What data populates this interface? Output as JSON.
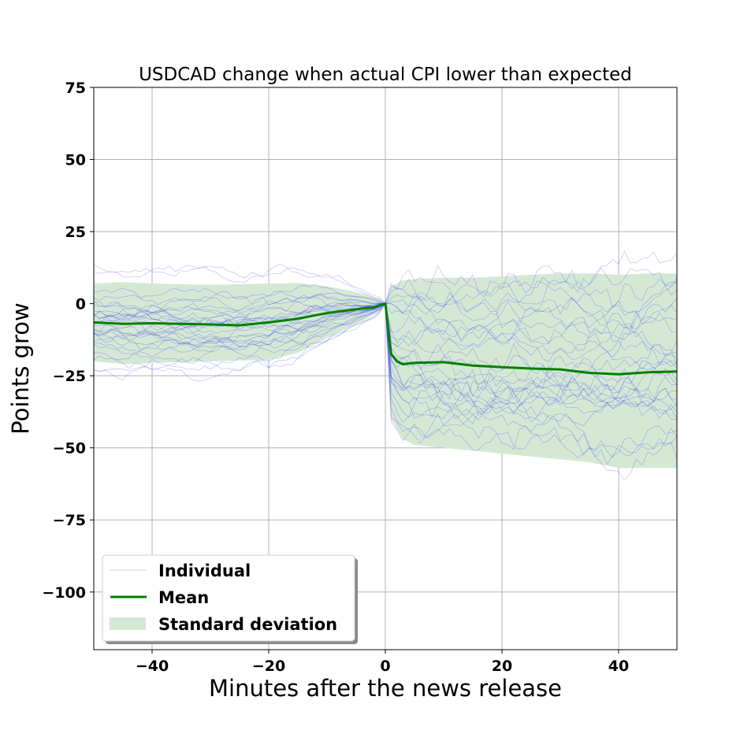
{
  "chart_data": {
    "type": "line",
    "title": "USDCAD change when actual CPI lower than expected",
    "xlabel": "Minutes after the news release",
    "ylabel": "Points grow",
    "xlim": [
      -50,
      50
    ],
    "ylim": [
      -120,
      75
    ],
    "xticks": [
      -40,
      -20,
      0,
      20,
      40
    ],
    "xtick_labels": [
      "−40",
      "−20",
      "0",
      "20",
      "40"
    ],
    "yticks": [
      75,
      50,
      25,
      0,
      -25,
      -50,
      -75,
      -100
    ],
    "ytick_labels": [
      "75",
      "50",
      "25",
      "0",
      "−25",
      "−50",
      "−75",
      "−100"
    ],
    "grid": true,
    "legend": {
      "placement": "lower-left",
      "entries": [
        "Individual",
        "Mean",
        "Standard deviation"
      ]
    },
    "colors": {
      "individual": "#0000ff",
      "mean": "#008000",
      "std_fill": "#d5e8d4"
    },
    "mean": {
      "x": [
        -50,
        -45,
        -40,
        -35,
        -30,
        -25,
        -20,
        -15,
        -12,
        -10,
        -8,
        -6,
        -4,
        -2,
        0,
        1,
        2,
        3,
        5,
        10,
        15,
        20,
        25,
        30,
        35,
        40,
        45,
        50
      ],
      "y": [
        -6.5,
        -7,
        -6.8,
        -7,
        -7.2,
        -7.5,
        -6.5,
        -5.2,
        -4,
        -3.3,
        -2.7,
        -2.2,
        -1.7,
        -1.3,
        0,
        -17.5,
        -20,
        -21,
        -20.5,
        -20.3,
        -21.5,
        -22,
        -22.5,
        -22.8,
        -24,
        -24.5,
        -23.8,
        -23.5
      ]
    },
    "std_band": {
      "x": [
        -50,
        -45,
        -40,
        -30,
        -20,
        -15,
        -10,
        -6,
        -3,
        -1,
        0,
        1,
        3,
        5,
        10,
        15,
        20,
        25,
        30,
        35,
        40,
        45,
        50
      ],
      "upper": [
        7,
        7.5,
        7,
        6.5,
        7,
        7.2,
        6,
        4.5,
        3,
        1.6,
        0,
        6,
        8,
        8.5,
        9,
        9,
        9.5,
        10,
        10.5,
        10.5,
        10,
        10.5,
        10.5
      ],
      "lower": [
        -20,
        -21,
        -20.5,
        -20,
        -19.5,
        -17,
        -12,
        -8,
        -5,
        -2.6,
        0,
        -40,
        -47,
        -49,
        -50,
        -51,
        -52,
        -53,
        -54,
        -55,
        -57,
        -57,
        -57
      ]
    }
  }
}
